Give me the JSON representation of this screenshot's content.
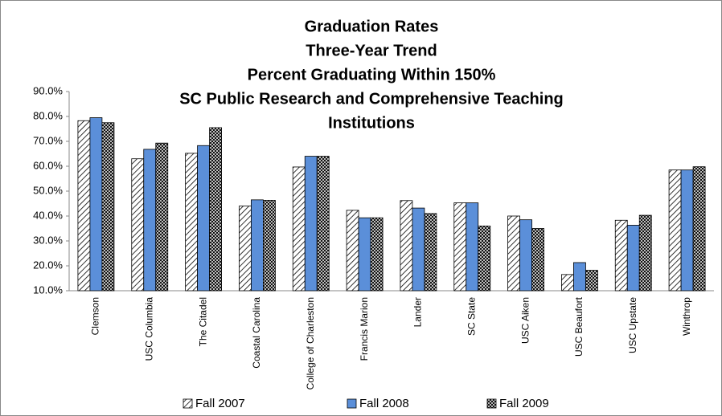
{
  "chart_data": {
    "type": "bar",
    "title": [
      "Graduation Rates",
      "Three-Year Trend",
      "Percent Graduating Within 150%",
      "SC Public Research and Comprehensive Teaching",
      "Institutions"
    ],
    "categories": [
      "Clemson",
      "USC Columbia",
      "The Citadel",
      "Coastal Carolina",
      "College of Charleston",
      "Francis Marion",
      "Lander",
      "SC State",
      "USC Aiken",
      "USC Beaufort",
      "USC Upstate",
      "Winthrop"
    ],
    "series": [
      {
        "name": "Fall 2007",
        "color": "#000000",
        "pattern": "diagonal",
        "values": [
          78.3,
          63,
          65.2,
          44,
          59.7,
          42.3,
          46.2,
          45.3,
          40,
          16.5,
          38.3,
          58.5
        ]
      },
      {
        "name": "Fall 2008",
        "color": "#5b8fd9",
        "pattern": "solid",
        "values": [
          79.5,
          66.8,
          68.3,
          46.5,
          64,
          39.3,
          43.2,
          45.3,
          38.5,
          21.3,
          36.3,
          58.5
        ]
      },
      {
        "name": "Fall 2009",
        "color": "#000000",
        "pattern": "cross",
        "values": [
          77.5,
          69.3,
          75.5,
          46.3,
          64,
          39.3,
          41,
          36,
          35,
          18.2,
          40.3,
          59.8
        ]
      }
    ],
    "ylim": [
      10,
      90
    ],
    "yticks": [
      {
        "value": 10,
        "label": "10.0%"
      },
      {
        "value": 20,
        "label": "20.0%"
      },
      {
        "value": 30,
        "label": "30.0%"
      },
      {
        "value": 40,
        "label": "40.0%"
      },
      {
        "value": 50,
        "label": "50.0%"
      },
      {
        "value": 60,
        "label": "60.0%"
      },
      {
        "value": 70,
        "label": "70.0%"
      },
      {
        "value": 80,
        "label": "80.0%"
      },
      {
        "value": 90,
        "label": "90.0%"
      }
    ],
    "grid": false,
    "legend": "bottom"
  }
}
